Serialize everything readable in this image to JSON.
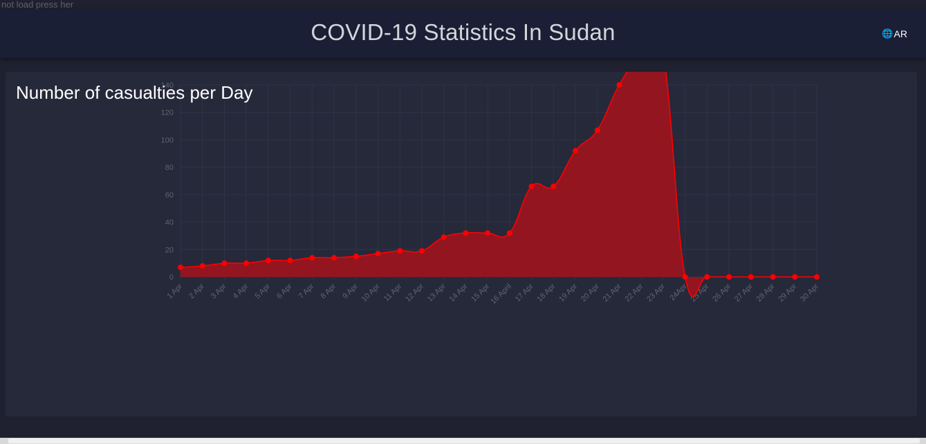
{
  "top_note": "not load press her",
  "header": {
    "title": "COVID-19 Statistics In Sudan",
    "lang_label": "AR",
    "lang_icon": "translate-icon",
    "bg_color": "#1b1f35"
  },
  "panel": {
    "title": "Number of casualties per Day"
  },
  "colors": {
    "page_bg": "#1f2130",
    "panel_bg": "#262939",
    "series_line": "#ff0000",
    "series_fill": "#931520"
  },
  "chart_data": {
    "type": "area",
    "title": "Number of casualties per Day",
    "categories": [
      "1 Apr",
      "2 Apr",
      "3 Apr",
      "4 Apr",
      "5 Apr",
      "6 Apr",
      "7 Apr",
      "8 Apr",
      "9 Apr",
      "10 Apr",
      "11 Apr",
      "12 Apr",
      "13 Apr",
      "14 Apr",
      "15 Apr",
      "16 April",
      "17 Apr",
      "18 Apr",
      "19 Apr",
      "20 Apr",
      "21 Apr",
      "22 Apr",
      "23 Apr",
      "24Apr",
      "25 Apr",
      "26 Apr",
      "27 Apr",
      "28 Apr",
      "29 Apr",
      "30 Apr"
    ],
    "values": [
      7,
      8,
      10,
      10,
      12,
      12,
      14,
      14,
      15,
      17,
      19,
      19,
      29,
      32,
      32,
      32,
      66,
      66,
      92,
      107,
      140,
      162,
      162,
      0,
      0,
      0,
      0,
      0,
      0,
      0
    ],
    "yticks": [
      0,
      20,
      40,
      60,
      80,
      100,
      120,
      140
    ],
    "ylim": [
      0,
      140
    ],
    "grid": true,
    "xlabel": "",
    "ylabel": ""
  }
}
